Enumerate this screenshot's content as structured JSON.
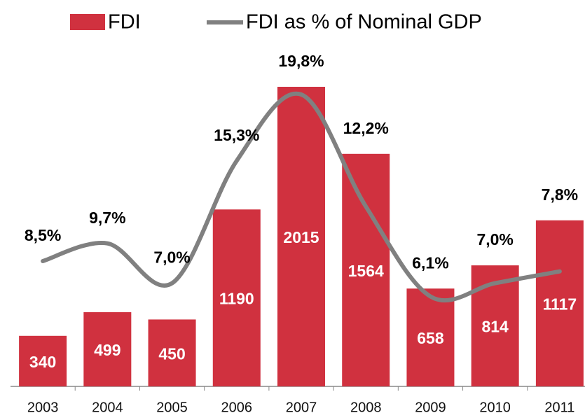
{
  "chart_data": {
    "type": "bar",
    "categories": [
      "2003",
      "2004",
      "2005",
      "2006",
      "2007",
      "2008",
      "2009",
      "2010",
      "2011"
    ],
    "series": [
      {
        "name": "FDI",
        "color": "#d0313f",
        "values": [
          340,
          499,
          450,
          1190,
          2015,
          1564,
          658,
          814,
          1117
        ]
      },
      {
        "name": "FDI as % of Nominal GDP",
        "color": "#808080",
        "type": "line",
        "axis": "y2",
        "values": [
          8.5,
          9.7,
          7.0,
          15.3,
          19.8,
          12.2,
          6.1,
          7.0,
          7.8
        ],
        "value_labels": [
          "8,5%",
          "9,7%",
          "7,0%",
          "15,3%",
          "19,8%",
          "12,2%",
          "6,1%",
          "7,0%",
          "7,8%"
        ]
      }
    ]
  }
}
